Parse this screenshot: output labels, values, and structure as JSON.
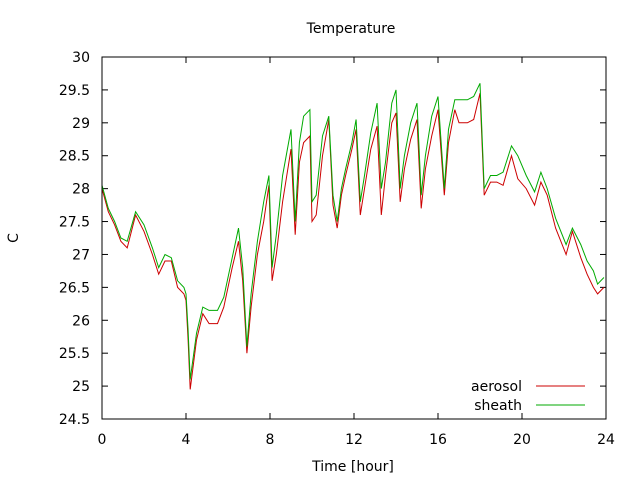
{
  "chart_data": {
    "type": "line",
    "title": "Temperature",
    "xlabel": "Time [hour]",
    "ylabel": "C",
    "xlim": [
      0,
      24
    ],
    "ylim": [
      24.5,
      30
    ],
    "xticks": [
      0,
      4,
      8,
      12,
      16,
      20,
      24
    ],
    "yticks": [
      24.5,
      25,
      25.5,
      26,
      26.5,
      27,
      27.5,
      28,
      28.5,
      29,
      29.5,
      30
    ],
    "xtick_labels": [
      "0",
      "4",
      "8",
      "12",
      "16",
      "20",
      "24"
    ],
    "ytick_labels": [
      "24.5",
      "25",
      "25.5",
      "26",
      "26.5",
      "27",
      "27.5",
      "28",
      "28.5",
      "29",
      "29.5",
      "30"
    ],
    "legend_position": "bottom-right",
    "grid": false,
    "series": [
      {
        "name": "aerosol",
        "color": "#cc0000",
        "points": [
          [
            0,
            28.0
          ],
          [
            0.3,
            27.65
          ],
          [
            0.6,
            27.45
          ],
          [
            0.9,
            27.2
          ],
          [
            1.2,
            27.1
          ],
          [
            1.6,
            27.6
          ],
          [
            2.0,
            27.35
          ],
          [
            2.4,
            27.0
          ],
          [
            2.7,
            26.7
          ],
          [
            3.0,
            26.9
          ],
          [
            3.3,
            26.9
          ],
          [
            3.6,
            26.5
          ],
          [
            3.9,
            26.4
          ],
          [
            4.0,
            26.3
          ],
          [
            4.1,
            25.7
          ],
          [
            4.2,
            24.95
          ],
          [
            4.5,
            25.7
          ],
          [
            4.8,
            26.1
          ],
          [
            5.1,
            25.95
          ],
          [
            5.5,
            25.95
          ],
          [
            5.8,
            26.2
          ],
          [
            6.2,
            26.8
          ],
          [
            6.5,
            27.2
          ],
          [
            6.7,
            26.6
          ],
          [
            6.9,
            25.5
          ],
          [
            7.1,
            26.2
          ],
          [
            7.4,
            27.0
          ],
          [
            7.7,
            27.5
          ],
          [
            7.95,
            28.05
          ],
          [
            8.1,
            26.6
          ],
          [
            8.3,
            27.0
          ],
          [
            8.6,
            27.8
          ],
          [
            9.0,
            28.6
          ],
          [
            9.2,
            27.3
          ],
          [
            9.4,
            28.4
          ],
          [
            9.6,
            28.7
          ],
          [
            9.9,
            28.8
          ],
          [
            10.0,
            27.5
          ],
          [
            10.2,
            27.6
          ],
          [
            10.5,
            28.5
          ],
          [
            10.8,
            29.05
          ],
          [
            11.0,
            27.75
          ],
          [
            11.2,
            27.4
          ],
          [
            11.4,
            27.9
          ],
          [
            11.6,
            28.2
          ],
          [
            11.9,
            28.6
          ],
          [
            12.1,
            28.9
          ],
          [
            12.3,
            27.6
          ],
          [
            12.5,
            28.0
          ],
          [
            12.8,
            28.6
          ],
          [
            13.1,
            28.95
          ],
          [
            13.3,
            27.6
          ],
          [
            13.5,
            28.2
          ],
          [
            13.8,
            29.0
          ],
          [
            14.0,
            29.15
          ],
          [
            14.2,
            27.8
          ],
          [
            14.4,
            28.3
          ],
          [
            14.7,
            28.75
          ],
          [
            15.0,
            29.05
          ],
          [
            15.2,
            27.7
          ],
          [
            15.4,
            28.3
          ],
          [
            15.7,
            28.8
          ],
          [
            16.0,
            29.2
          ],
          [
            16.3,
            27.9
          ],
          [
            16.5,
            28.7
          ],
          [
            16.8,
            29.2
          ],
          [
            17.0,
            29.0
          ],
          [
            17.4,
            29.0
          ],
          [
            17.7,
            29.05
          ],
          [
            18.0,
            29.45
          ],
          [
            18.2,
            27.9
          ],
          [
            18.5,
            28.1
          ],
          [
            18.8,
            28.1
          ],
          [
            19.1,
            28.05
          ],
          [
            19.5,
            28.5
          ],
          [
            19.8,
            28.15
          ],
          [
            20.2,
            28.0
          ],
          [
            20.6,
            27.75
          ],
          [
            20.9,
            28.1
          ],
          [
            21.2,
            27.9
          ],
          [
            21.6,
            27.4
          ],
          [
            22.1,
            27.0
          ],
          [
            22.4,
            27.35
          ],
          [
            22.8,
            26.95
          ],
          [
            23.1,
            26.7
          ],
          [
            23.4,
            26.5
          ],
          [
            23.6,
            26.4
          ],
          [
            23.9,
            26.5
          ]
        ]
      },
      {
        "name": "sheath",
        "color": "#00aa00",
        "points": [
          [
            0,
            28.05
          ],
          [
            0.3,
            27.7
          ],
          [
            0.6,
            27.5
          ],
          [
            0.9,
            27.25
          ],
          [
            1.2,
            27.2
          ],
          [
            1.6,
            27.65
          ],
          [
            2.0,
            27.45
          ],
          [
            2.4,
            27.1
          ],
          [
            2.7,
            26.8
          ],
          [
            3.0,
            27.0
          ],
          [
            3.3,
            26.95
          ],
          [
            3.6,
            26.6
          ],
          [
            3.9,
            26.5
          ],
          [
            4.0,
            26.4
          ],
          [
            4.1,
            25.85
          ],
          [
            4.2,
            25.1
          ],
          [
            4.5,
            25.8
          ],
          [
            4.8,
            26.2
          ],
          [
            5.1,
            26.15
          ],
          [
            5.5,
            26.15
          ],
          [
            5.8,
            26.35
          ],
          [
            6.2,
            26.95
          ],
          [
            6.5,
            27.4
          ],
          [
            6.7,
            26.8
          ],
          [
            6.9,
            25.6
          ],
          [
            7.1,
            26.4
          ],
          [
            7.4,
            27.2
          ],
          [
            7.7,
            27.8
          ],
          [
            7.95,
            28.2
          ],
          [
            8.1,
            26.8
          ],
          [
            8.3,
            27.3
          ],
          [
            8.6,
            28.2
          ],
          [
            9.0,
            28.9
          ],
          [
            9.2,
            27.5
          ],
          [
            9.4,
            28.7
          ],
          [
            9.6,
            29.1
          ],
          [
            9.9,
            29.2
          ],
          [
            10.0,
            27.8
          ],
          [
            10.2,
            27.9
          ],
          [
            10.5,
            28.8
          ],
          [
            10.8,
            29.1
          ],
          [
            11.0,
            27.9
          ],
          [
            11.2,
            27.5
          ],
          [
            11.4,
            28.0
          ],
          [
            11.6,
            28.3
          ],
          [
            11.9,
            28.7
          ],
          [
            12.1,
            29.05
          ],
          [
            12.3,
            27.8
          ],
          [
            12.5,
            28.2
          ],
          [
            12.8,
            28.85
          ],
          [
            13.1,
            29.3
          ],
          [
            13.3,
            28.0
          ],
          [
            13.5,
            28.4
          ],
          [
            13.8,
            29.3
          ],
          [
            14.0,
            29.5
          ],
          [
            14.2,
            28.0
          ],
          [
            14.4,
            28.5
          ],
          [
            14.7,
            29.0
          ],
          [
            15.0,
            29.3
          ],
          [
            15.2,
            27.9
          ],
          [
            15.4,
            28.5
          ],
          [
            15.7,
            29.1
          ],
          [
            16.0,
            29.4
          ],
          [
            16.3,
            28.0
          ],
          [
            16.5,
            28.9
          ],
          [
            16.8,
            29.35
          ],
          [
            17.0,
            29.35
          ],
          [
            17.4,
            29.35
          ],
          [
            17.7,
            29.4
          ],
          [
            18.0,
            29.6
          ],
          [
            18.2,
            28.0
          ],
          [
            18.5,
            28.2
          ],
          [
            18.8,
            28.2
          ],
          [
            19.1,
            28.25
          ],
          [
            19.5,
            28.65
          ],
          [
            19.8,
            28.5
          ],
          [
            20.2,
            28.2
          ],
          [
            20.6,
            27.95
          ],
          [
            20.9,
            28.25
          ],
          [
            21.2,
            28.0
          ],
          [
            21.6,
            27.55
          ],
          [
            22.1,
            27.15
          ],
          [
            22.4,
            27.4
          ],
          [
            22.8,
            27.15
          ],
          [
            23.1,
            26.9
          ],
          [
            23.4,
            26.75
          ],
          [
            23.6,
            26.55
          ],
          [
            23.9,
            26.65
          ]
        ]
      }
    ]
  }
}
